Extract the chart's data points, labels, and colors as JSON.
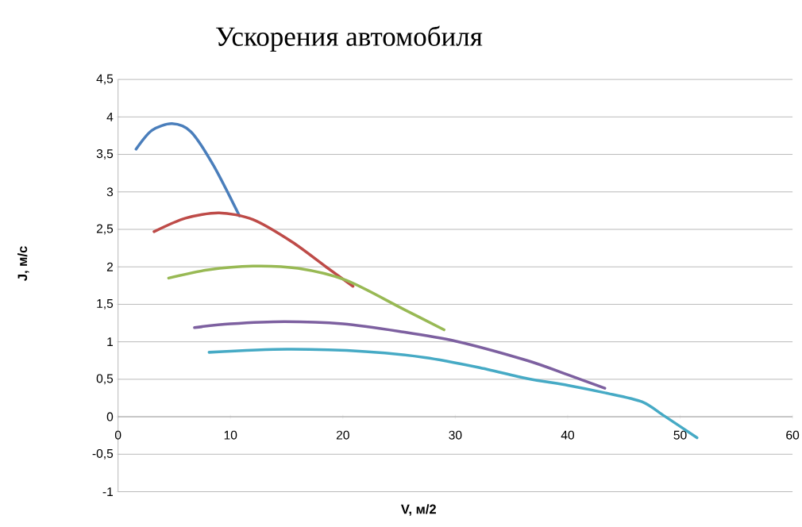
{
  "chart_data": {
    "type": "line",
    "title": "Ускорения автомобиля",
    "xlabel": "V, м/2",
    "ylabel": "J, м/с",
    "xlim": [
      0,
      60
    ],
    "ylim": [
      -1,
      4.5
    ],
    "xticks": [
      0,
      10,
      20,
      30,
      40,
      50,
      60
    ],
    "yticks": [
      -1,
      {
        "value": -0.5,
        "label": "-0,5"
      },
      0,
      {
        "value": 0.5,
        "label": "0,5"
      },
      1,
      {
        "value": 1.5,
        "label": "1,5"
      },
      2,
      {
        "value": 2.5,
        "label": "2,5"
      },
      3,
      {
        "value": 3.5,
        "label": "3,5"
      },
      4,
      {
        "value": 4.5,
        "label": "4,5"
      }
    ],
    "grid": "y",
    "marker": "none",
    "line_style": "solid",
    "series": [
      {
        "color": "#4a7ebb",
        "x": [
          1.6,
          3,
          4.8,
          6.5,
          8.5,
          10.8
        ],
        "values": [
          3.57,
          3.82,
          3.91,
          3.8,
          3.35,
          2.68
        ]
      },
      {
        "color": "#be4b48",
        "x": [
          3.2,
          6,
          9,
          12,
          15.5,
          18.5,
          20.9
        ],
        "values": [
          2.47,
          2.65,
          2.72,
          2.63,
          2.33,
          2.0,
          1.74
        ]
      },
      {
        "color": "#98b954",
        "x": [
          4.5,
          8,
          12,
          16,
          20.3,
          25.2,
          29
        ],
        "values": [
          1.85,
          1.96,
          2.01,
          1.98,
          1.82,
          1.45,
          1.16
        ]
      },
      {
        "color": "#7d60a0",
        "x": [
          6.8,
          10,
          14.8,
          20,
          25,
          30,
          36.4,
          40,
          43.3
        ],
        "values": [
          1.19,
          1.24,
          1.27,
          1.24,
          1.14,
          1.01,
          0.75,
          0.56,
          0.38
        ]
      },
      {
        "color": "#46aac5",
        "x": [
          8.1,
          15,
          22,
          27.3,
          32,
          36.4,
          40,
          43.3,
          46.6,
          48.6,
          51.5
        ],
        "values": [
          0.86,
          0.9,
          0.87,
          0.79,
          0.66,
          0.51,
          0.42,
          0.32,
          0.2,
          0.01,
          -0.28
        ]
      }
    ]
  }
}
